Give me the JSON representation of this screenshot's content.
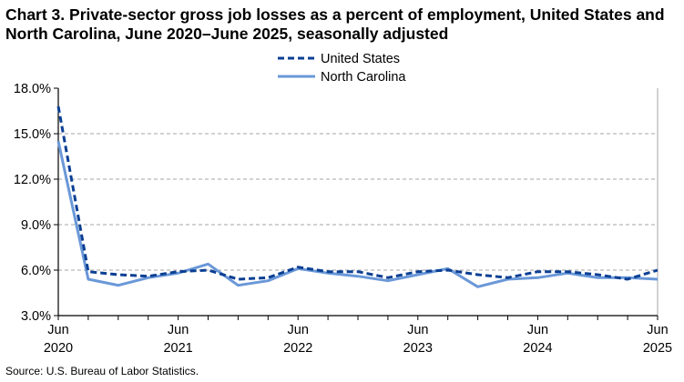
{
  "chart_data": {
    "type": "line",
    "title": "Chart 3. Private-sector gross job losses as a percent of employment, United States and North Carolina, June 2020–June 2025, seasonally adjusted",
    "source": "Source: U.S. Bureau of Labor Statistics.",
    "x": [
      "Jun 2020",
      "Sep 2020",
      "Dec 2020",
      "Mar 2021",
      "Jun 2021",
      "Sep 2021",
      "Dec 2021",
      "Mar 2022",
      "Jun 2022",
      "Sep 2022",
      "Dec 2022",
      "Mar 2023",
      "Jun 2023",
      "Sep 2023",
      "Dec 2023",
      "Mar 2024",
      "Jun 2024",
      "Sep 2024",
      "Dec 2024",
      "Mar 2025",
      "Jun 2025"
    ],
    "x_tick_labels": [
      {
        "index": 0,
        "month": "Jun",
        "year": "2020"
      },
      {
        "index": 4,
        "month": "Jun",
        "year": "2021"
      },
      {
        "index": 8,
        "month": "Jun",
        "year": "2022"
      },
      {
        "index": 12,
        "month": "Jun",
        "year": "2023"
      },
      {
        "index": 16,
        "month": "Jun",
        "year": "2024"
      },
      {
        "index": 20,
        "month": "Jun",
        "year": "2025"
      }
    ],
    "y_ticks": [
      "3.0%",
      "6.0%",
      "9.0%",
      "12.0%",
      "15.0%",
      "18.0%"
    ],
    "y_tick_values": [
      3,
      6,
      9,
      12,
      15,
      18
    ],
    "ylim": [
      3,
      18
    ],
    "grid": "horizontal dashed",
    "legend": "top-center",
    "series": [
      {
        "name": "United States",
        "color": "#0B3F93",
        "style": "dashed",
        "values": [
          16.8,
          5.9,
          5.7,
          5.6,
          5.9,
          6.0,
          5.4,
          5.5,
          6.2,
          5.9,
          5.9,
          5.5,
          5.9,
          6.0,
          5.7,
          5.5,
          5.9,
          5.9,
          5.7,
          5.4,
          6.0
        ]
      },
      {
        "name": "North Carolina",
        "color": "#6A98D8",
        "style": "solid",
        "values": [
          14.5,
          5.4,
          5.0,
          5.5,
          5.8,
          6.4,
          5.0,
          5.3,
          6.1,
          5.8,
          5.6,
          5.3,
          5.7,
          6.1,
          4.9,
          5.4,
          5.5,
          5.8,
          5.5,
          5.5,
          5.4
        ]
      }
    ]
  }
}
